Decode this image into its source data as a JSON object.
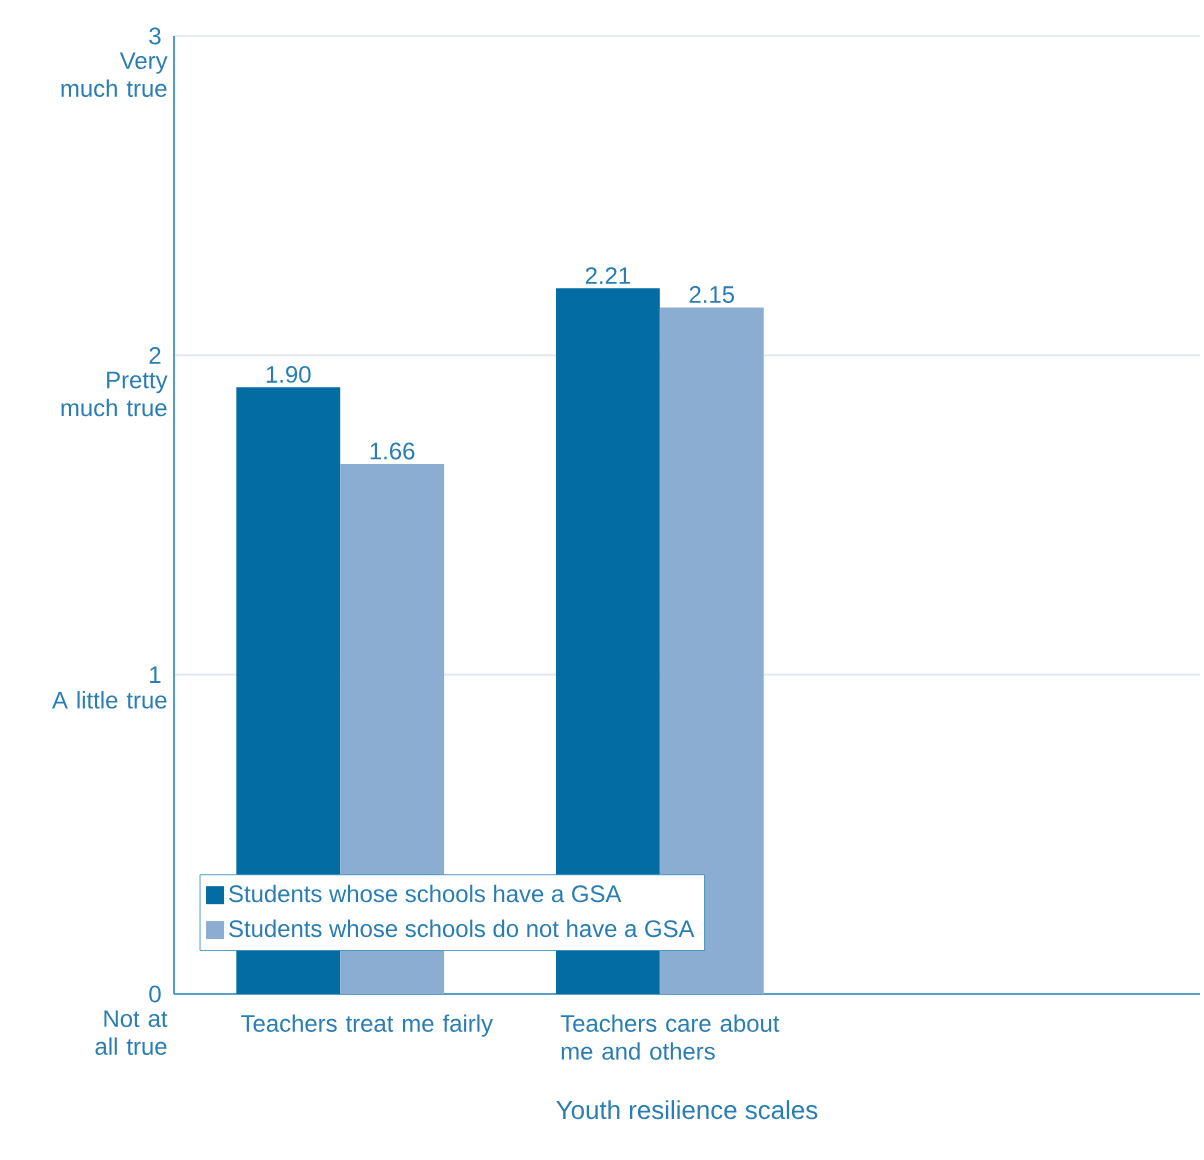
{
  "chart_data": {
    "type": "bar",
    "xlabel": "Youth resilience scales",
    "categories": [
      "Teachers treat me fairly",
      "Teachers care about me and others"
    ],
    "series": [
      {
        "name": "Students whose schools have a GSA",
        "color": "#026ca3",
        "values": [
          1.9,
          2.21
        ],
        "value_labels": [
          "1.90",
          "2.21"
        ]
      },
      {
        "name": "Students whose schools do not have a GSA",
        "color": "#8badd1",
        "values": [
          1.66,
          2.15
        ],
        "value_labels": [
          "1.66",
          "2.15"
        ]
      }
    ],
    "ylim": [
      0,
      3
    ],
    "yticks": [
      0,
      1,
      2,
      3
    ],
    "annotations": [
      "Not at all true",
      "A little true",
      "Pretty much true",
      "Very much true"
    ],
    "grid": "y",
    "legend": "bottom left"
  }
}
